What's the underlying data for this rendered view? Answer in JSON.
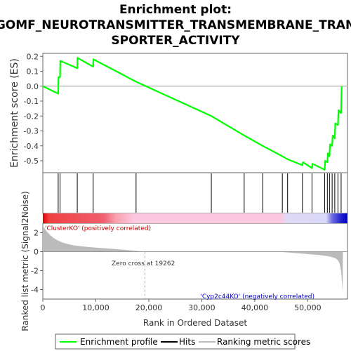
{
  "chart_data": {
    "type": "line",
    "title_lines": [
      "Enrichment plot:",
      "GOMF_NEUROTRANSMITTER_TRANSMEMBRANE_TRAN",
      "SPORTER_ACTIVITY"
    ],
    "es_panel": {
      "ylabel": "Enrichment score (ES)",
      "ylim": [
        -0.58,
        0.22
      ],
      "yticks": [
        0.2,
        0.1,
        0.0,
        -0.1,
        -0.2,
        -0.3,
        -0.4,
        -0.5
      ],
      "ytick_labels": [
        "0.2",
        "0.1",
        "0.0",
        "-0.1",
        "-0.2",
        "-0.3",
        "-0.4",
        "-0.5"
      ],
      "series": [
        {
          "name": "Enrichment profile",
          "color": "#00ff00",
          "x": [
            0,
            2900,
            2950,
            3250,
            3300,
            6500,
            6550,
            9500,
            9550,
            17600,
            31800,
            38000,
            41500,
            45200,
            46200,
            49000,
            49100,
            50800,
            50900,
            53200,
            53300,
            53700,
            53800,
            54100,
            54200,
            54600,
            54700,
            55100,
            55200,
            55700,
            55800,
            56300,
            56400
          ],
          "y": [
            0.0,
            -0.05,
            0.06,
            0.06,
            0.17,
            0.12,
            0.19,
            0.13,
            0.18,
            0.03,
            -0.2,
            -0.33,
            -0.4,
            -0.47,
            -0.49,
            -0.53,
            -0.51,
            -0.55,
            -0.52,
            -0.56,
            -0.5,
            -0.51,
            -0.45,
            -0.47,
            -0.39,
            -0.4,
            -0.33,
            -0.35,
            -0.25,
            -0.26,
            -0.16,
            -0.18,
            0.0
          ]
        }
      ]
    },
    "hits": [
      2900,
      3250,
      6500,
      9500,
      17600,
      31800,
      38000,
      41500,
      45200,
      46200,
      49000,
      50800,
      53200,
      53700,
      54100,
      54600,
      55100,
      55700,
      56300
    ],
    "rank_metric_panel": {
      "ylabel": "Ranked list metric (Signal2Noise)",
      "ylim": [
        -5,
        3
      ],
      "yticks": [
        2,
        0,
        -2,
        -4
      ],
      "ytick_labels": [
        "2",
        "0",
        "-2",
        "-4"
      ],
      "zero_cross_label": "Zero cross at 19262",
      "zero_cross": 19262,
      "positive_label": "'ClusterKO' (positively correlated)",
      "negative_label": "'Cyp2c44KO' (negatively correlated)",
      "positive_color": "#cc0000",
      "negative_color": "#0000cc"
    },
    "xlabel": "Rank in Ordered Dataset",
    "xlim": [
      0,
      57500
    ],
    "xticks": [
      0,
      10000,
      20000,
      30000,
      40000,
      50000
    ],
    "xtick_labels": [
      "0",
      "10,000",
      "20,000",
      "30,000",
      "40,000",
      "50,000"
    ],
    "legend": {
      "placement": "bottom",
      "items": [
        {
          "label": "Enrichment profile",
          "color": "#00ff00"
        },
        {
          "label": "Hits",
          "color": "#000000"
        },
        {
          "label": "Ranking metric scores",
          "color": "#bbbbbb"
        }
      ]
    }
  }
}
